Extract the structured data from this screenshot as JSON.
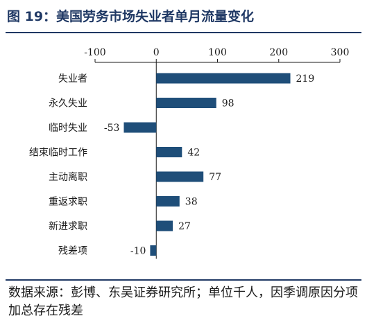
{
  "header": {
    "title": "图 19：美国劳务市场失业者单月流量变化"
  },
  "footer": {
    "source": "数据来源：彭博、东吴证券研究所；单位千人，因季调原因分项加总存在残差"
  },
  "colors": {
    "bar": "#1f4e79",
    "title": "#1f3864",
    "axis": "#1a1a1a"
  },
  "chart_data": {
    "type": "bar",
    "orientation": "horizontal",
    "categories": [
      "失业者",
      "永久失业",
      "临时失业",
      "结束临时工作",
      "主动离职",
      "重返求职",
      "新进求职",
      "残差项"
    ],
    "values": [
      219,
      98,
      -53,
      42,
      77,
      38,
      27,
      -10
    ],
    "xlim": [
      -100,
      300
    ],
    "xticks": [
      -100,
      0,
      100,
      200,
      300
    ],
    "xaxis_position": "top",
    "data_labels": true,
    "grid": false
  }
}
